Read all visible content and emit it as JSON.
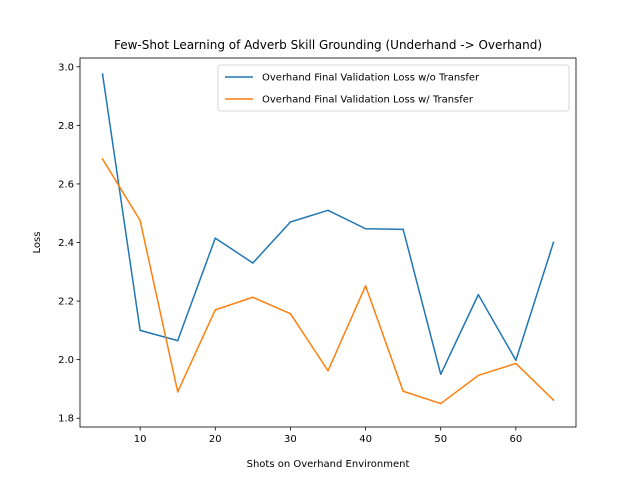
{
  "chart_data": {
    "type": "line",
    "title": "Few-Shot Learning of Adverb Skill Grounding (Underhand -> Overhand)",
    "xlabel": "Shots on Overhand Environment",
    "ylabel": "Loss",
    "xlim": [
      2,
      68
    ],
    "ylim": [
      1.77,
      3.03
    ],
    "x": [
      5,
      10,
      15,
      20,
      25,
      30,
      35,
      40,
      45,
      50,
      55,
      60,
      65
    ],
    "x_ticks": [
      10,
      20,
      30,
      40,
      50,
      60
    ],
    "x_tick_labels": [
      "10",
      "20",
      "30",
      "40",
      "50",
      "60"
    ],
    "y_ticks": [
      1.8,
      2.0,
      2.2,
      2.4,
      2.6,
      2.8,
      3.0
    ],
    "y_tick_labels": [
      "1.8",
      "2.0",
      "2.2",
      "2.4",
      "2.6",
      "2.8",
      "3.0"
    ],
    "grid": false,
    "legend_position": "top-right",
    "series": [
      {
        "name": "Overhand Final Validation Loss w/o Transfer",
        "color": "#1f77b4",
        "values": [
          2.975,
          2.1,
          2.065,
          2.415,
          2.33,
          2.47,
          2.51,
          2.447,
          2.445,
          1.95,
          2.222,
          1.998,
          2.4
        ]
      },
      {
        "name": "Overhand Final Validation Loss w/ Transfer",
        "color": "#ff7f0e",
        "values": [
          2.685,
          2.475,
          1.89,
          2.17,
          2.213,
          2.157,
          1.962,
          2.252,
          1.892,
          1.85,
          1.946,
          1.987,
          1.862
        ]
      }
    ]
  }
}
